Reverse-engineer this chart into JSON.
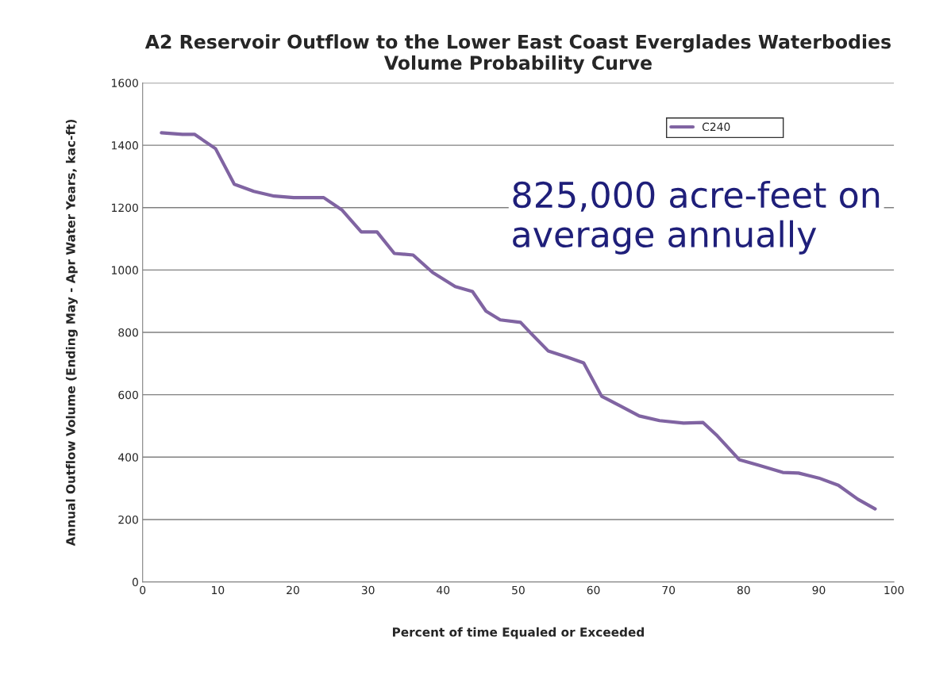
{
  "chart_data": {
    "type": "line",
    "title": "A2 Reservoir Outflow to the Lower East Coast Everglades Waterbodies\nVolume Probability Curve",
    "xlabel": "Percent of time Equaled or Exceeded",
    "ylabel": "Annual Outflow Volume (Ending May - Apr Water Years, kac-ft)",
    "series": [
      {
        "name": "C240",
        "color": "#8064a2",
        "x": [
          2.5,
          5.3,
          6.9,
          9.7,
          12.2,
          14.8,
          17.5,
          20.1,
          24.1,
          26.5,
          29.1,
          31.2,
          33.5,
          36,
          38.6,
          41.6,
          43.9,
          45.7,
          47.6,
          50.3,
          51.6,
          54,
          56.6,
          58.7,
          61.1,
          63.5,
          66.1,
          68.8,
          72,
          74.6,
          76.5,
          79.4,
          82,
          85.2,
          87.3,
          90,
          92.6,
          95.2,
          97.5
        ],
        "values": [
          1440,
          1435,
          1435,
          1389,
          1275,
          1252,
          1237,
          1232,
          1232,
          1193,
          1122,
          1122,
          1053,
          1048,
          992,
          947,
          931,
          868,
          840,
          832,
          799,
          740,
          720,
          702,
          595,
          565,
          532,
          517,
          509,
          511,
          468,
          392,
          374,
          351,
          349,
          333,
          310,
          265,
          234
        ]
      }
    ],
    "xlim": [
      0,
      100
    ],
    "xticks": [
      0,
      10,
      20,
      30,
      40,
      50,
      60,
      70,
      80,
      90,
      100
    ],
    "ylim": [
      0,
      1600
    ],
    "yticks": [
      0,
      200,
      400,
      600,
      800,
      1000,
      1200,
      1400,
      1600
    ],
    "grid": "y",
    "legend": "top right",
    "marker": "none",
    "line_style": "solid",
    "annotations": [
      "825,000 acre-feet on\naverage annually"
    ]
  }
}
